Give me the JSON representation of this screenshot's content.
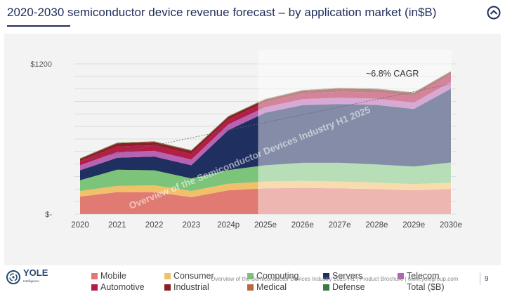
{
  "header": {
    "title": "2020-2030 semiconductor device revenue forecast – by application market (in$B)"
  },
  "colors": {
    "accent": "#1f2d5a",
    "panel_bg": "#f3f3f3"
  },
  "chart_data": {
    "type": "area",
    "stacked": true,
    "categories": [
      "2020",
      "2021",
      "2022",
      "2023",
      "2024p",
      "2025e",
      "2026e",
      "2027e",
      "2028e",
      "2029e",
      "2030e"
    ],
    "forecast_start_index": 5,
    "yaxis": {
      "ticks": [
        {
          "value": 0,
          "label": "$-"
        },
        {
          "value": 1200,
          "label": "$1200"
        }
      ],
      "ylim": [
        0,
        1200
      ]
    },
    "grid": true,
    "watermark": "Overview of the Semiconductor Devices Industry H1 2025",
    "annotation": "~6.8% CAGR",
    "trend_line": {
      "from": 425,
      "to": 1040
    },
    "series": [
      {
        "name": "Mobile",
        "color": "#e07a72",
        "values": [
          140,
          175,
          175,
          135,
          190,
          205,
          210,
          205,
          200,
          190,
          200
        ]
      },
      {
        "name": "Consumer",
        "color": "#f2bf6a",
        "values": [
          45,
          50,
          55,
          50,
          52,
          55,
          55,
          55,
          52,
          50,
          52
        ]
      },
      {
        "name": "Computing",
        "color": "#7cc47a",
        "values": [
          85,
          130,
          120,
          100,
          110,
          130,
          145,
          150,
          145,
          140,
          160
        ]
      },
      {
        "name": "Servers",
        "color": "#1f2f60",
        "values": [
          80,
          95,
          110,
          105,
          320,
          420,
          460,
          470,
          475,
          460,
          590
        ]
      },
      {
        "name": "Telecom",
        "color": "#b663b3",
        "values": [
          40,
          45,
          45,
          45,
          45,
          45,
          48,
          50,
          50,
          50,
          55
        ]
      },
      {
        "name": "Automotive",
        "color": "#b31e48",
        "values": [
          35,
          45,
          45,
          45,
          40,
          40,
          45,
          48,
          50,
          52,
          60
        ]
      },
      {
        "name": "Industrial",
        "color": "#8a1f24",
        "values": [
          15,
          25,
          25,
          25,
          20,
          20,
          22,
          25,
          25,
          25,
          20
        ]
      },
      {
        "name": "Medical",
        "color": "#b86a3c",
        "values": [
          3,
          3,
          3,
          3,
          3,
          3,
          3,
          3,
          3,
          3,
          3
        ]
      },
      {
        "name": "Defense",
        "color": "#3c7a44",
        "values": [
          3,
          3,
          3,
          3,
          3,
          3,
          3,
          3,
          3,
          3,
          3
        ]
      }
    ],
    "total_series_name": "Total ($B)",
    "legend": [
      {
        "name": "Mobile",
        "color": "#e07a72"
      },
      {
        "name": "Consumer",
        "color": "#f2bf6a"
      },
      {
        "name": "Computing",
        "color": "#7cc47a"
      },
      {
        "name": "Servers",
        "color": "#1f2f60"
      },
      {
        "name": "Telecom",
        "color": "#b663b3"
      },
      {
        "name": "Automotive",
        "color": "#b31e48"
      },
      {
        "name": "Industrial",
        "color": "#8a1f24"
      },
      {
        "name": "Medical",
        "color": "#b86a3c"
      },
      {
        "name": "Defense",
        "color": "#3c7a44"
      },
      {
        "name": "Total ($B)",
        "color": ""
      }
    ]
  },
  "footer": {
    "brand": "YOLE",
    "brand_sub": "Intelligence",
    "text": "Overview of the Semiconductor Devices Industry 2025-H1 | Product Brochure | www.yolegroup.com",
    "page_number": "9"
  }
}
